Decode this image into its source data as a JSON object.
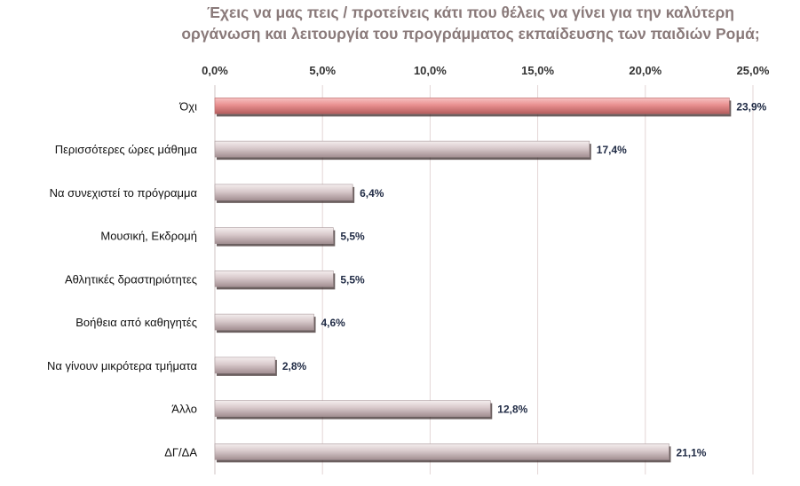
{
  "chart_data": {
    "type": "bar",
    "orientation": "horizontal",
    "title_lines": [
      "Έχεις να μας πεις / προτείνεις κάτι που θέλεις να γίνει για την καλύτερη",
      "οργάνωση  και λειτουργία του προγράμματος  εκπαίδευσης των παιδιών Ρομά;"
    ],
    "categories": [
      "Όχι",
      "Περισσότερες ώρες μάθημα",
      "Να συνεχιστεί  το πρόγραμμα",
      "Μουσική, Εκδρομή",
      "Αθλητικές δραστηριότητες",
      "Βοήθεια από καθηγητές",
      "Να γίνουν μικρότερα  τμήματα",
      "Άλλο",
      "ΔΓ/ΔΑ"
    ],
    "values": [
      23.9,
      17.4,
      6.4,
      5.5,
      5.5,
      4.6,
      2.8,
      12.8,
      21.1
    ],
    "data_labels": [
      "23,9%",
      "17,4%",
      "6,4%",
      "5,5%",
      "5,5%",
      "4,6%",
      "2,8%",
      "12,8%",
      "21,1%"
    ],
    "highlight_index": 0,
    "xlim": [
      0,
      25
    ],
    "x_ticks": [
      0,
      5,
      10,
      15,
      20,
      25
    ],
    "x_tick_labels": [
      "0,0%",
      "5,0%",
      "10,0%",
      "15,0%",
      "20,0%",
      "25,0%"
    ],
    "x_axis_position": "top",
    "grid": true,
    "legend": false,
    "colors": {
      "bar": "#c9b9bb",
      "bar_highlight": "#e88f8f",
      "bar_shadow": "#3a2a2a",
      "grid": "#e3d6d6",
      "title": "#8a7a7a",
      "data_label": "#1f2a44"
    }
  }
}
